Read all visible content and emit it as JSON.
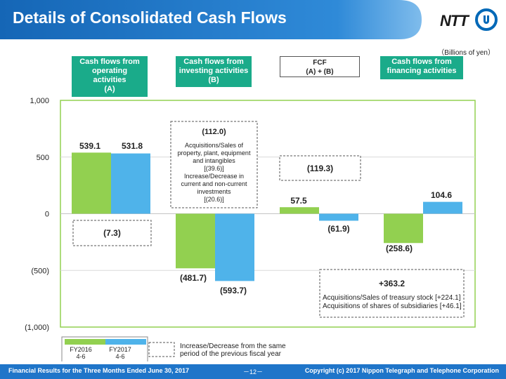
{
  "slide": {
    "title": "Details of Consolidated Cash Flows",
    "logo_text": "NTT",
    "units": "（Billions of yen）"
  },
  "headers": {
    "operating": [
      "Cash flows from",
      "operating",
      "activities",
      "(A)"
    ],
    "investing": [
      "Cash flows from",
      "investing activities",
      "(B)"
    ],
    "fcf": [
      "FCF",
      "(A) + (B)"
    ],
    "financing": [
      "Cash flows from",
      "financing  activities"
    ]
  },
  "chart_data": {
    "type": "bar",
    "categories": [
      "Cash flows from operating activities (A)",
      "Cash flows from investing activities (B)",
      "FCF (A) + (B)",
      "Cash flows from financing activities"
    ],
    "series": [
      {
        "name": "FY2016 4-6",
        "values": [
          539.1,
          -481.7,
          57.5,
          -258.6
        ],
        "labels": [
          "539.1",
          "(481.7)",
          "57.5",
          "(258.6)"
        ],
        "color": "#92d050"
      },
      {
        "name": "FY2017 4-6",
        "values": [
          531.8,
          -593.7,
          -61.9,
          104.6
        ],
        "labels": [
          "531.8",
          "(593.7)",
          "(61.9)",
          "104.6"
        ],
        "color": "#4fb3ea"
      }
    ],
    "ylim": [
      -1000,
      1000
    ],
    "yticks": [
      1000,
      500,
      0,
      -500,
      -1000
    ],
    "ytick_labels": [
      "1,000",
      "500",
      "0",
      "(500)",
      "(1,000)"
    ],
    "grid": true,
    "change_boxes": [
      {
        "lines": [
          "(7.3)"
        ]
      },
      {
        "lines": [
          "(112.0)",
          "Acquisitions/Sales of",
          "property, plant, equipment",
          "and intangibles",
          "[(39.6)]",
          "Increase/Decrease in",
          "current and non-current",
          "investments",
          "[(20.6)]"
        ]
      },
      {
        "lines": [
          "(119.3)"
        ]
      },
      {
        "lines": [
          "+363.2",
          "Acquisitions/Sales of treasury stock [+224.1]",
          "Acquisitions of shares of subsidiaries [+46.1]"
        ]
      }
    ],
    "legend": {
      "series": [
        [
          "FY2016",
          "4-6"
        ],
        [
          "FY2017",
          "4-6"
        ]
      ],
      "box_text": [
        "Increase/Decrease from the same",
        "period of the previous fiscal year"
      ]
    }
  },
  "footer": {
    "left": "Financial Results for the Three Months Ended June 30, 2017",
    "page": "－12－",
    "right": "Copyright (c) 2017 Nippon Telegraph and Telephone Corporation"
  },
  "colors": {
    "title_blue": "#1673c8",
    "header_green": "#1aab8a",
    "plot_border": "#92d050",
    "fy2016": "#92d050",
    "fy2017": "#4fb3ea",
    "footer_blue": "#1f75c9"
  }
}
